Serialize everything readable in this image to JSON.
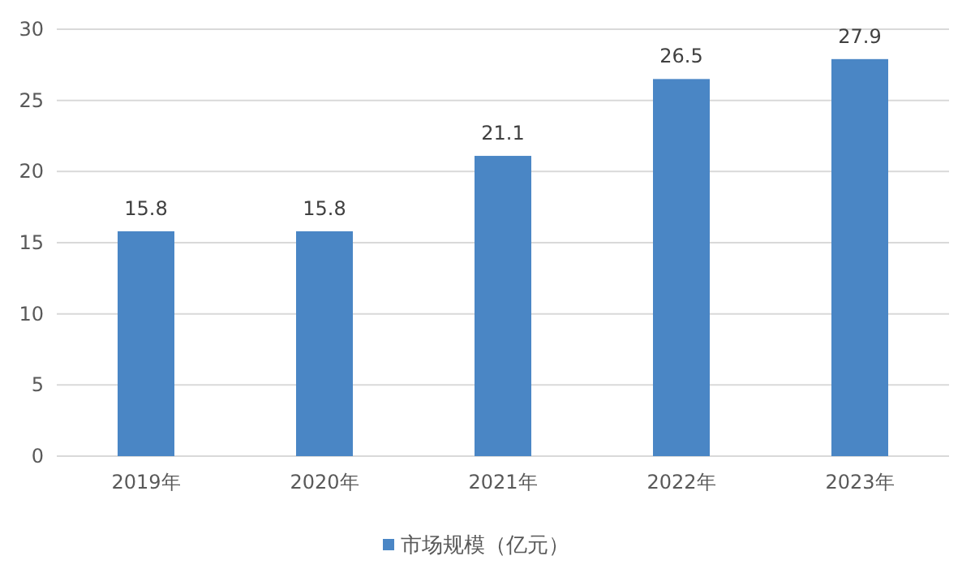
{
  "chart_data": {
    "type": "bar",
    "categories": [
      "2019年",
      "2020年",
      "2021年",
      "2022年",
      "2023年"
    ],
    "series": [
      {
        "name": "市场规模（亿元）",
        "color": "#4a86c5",
        "values": [
          15.8,
          15.8,
          21.1,
          26.5,
          27.9
        ]
      }
    ],
    "ylim": [
      0,
      30
    ],
    "yticks": [
      0,
      5,
      10,
      15,
      20,
      25,
      30
    ],
    "grid": "y",
    "legend": "bottom",
    "data_labels": true
  }
}
